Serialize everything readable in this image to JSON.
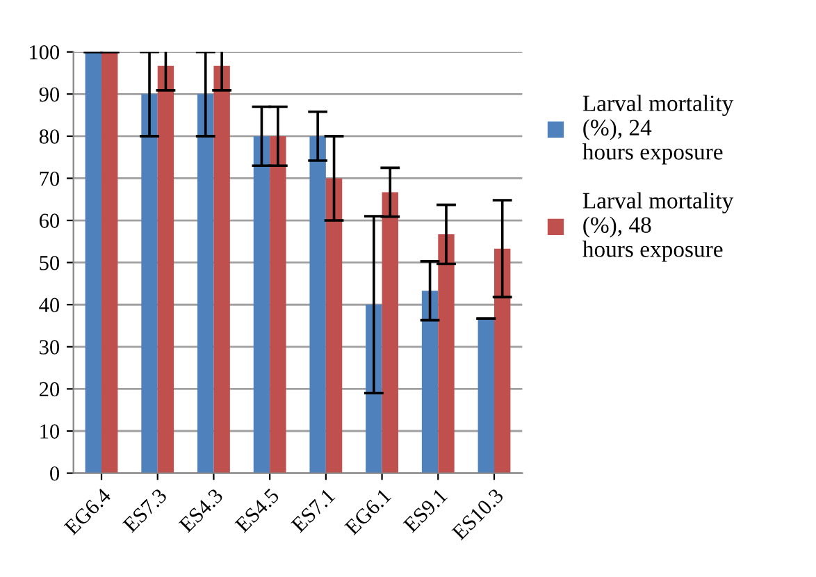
{
  "chart_data": {
    "type": "bar",
    "categories": [
      "EG6.4",
      "ES7.3",
      "ES4.3",
      "ES4.5",
      "ES7.1",
      "EG6.1",
      "ES9.1",
      "ES10.3"
    ],
    "series": [
      {
        "name": "Larval mortality (%), 24 hours exposure",
        "color": "#4f81bd",
        "values": [
          100,
          90,
          90,
          80,
          80,
          40,
          43.3,
          36.7
        ],
        "errors": [
          0,
          10,
          10,
          7,
          5.8,
          21,
          7,
          0
        ]
      },
      {
        "name": "Larval mortality (%), 48 hours exposure",
        "color": "#c0504d",
        "values": [
          100,
          96.7,
          96.7,
          80,
          70,
          66.7,
          56.7,
          53.3
        ],
        "errors": [
          0,
          5.8,
          5.8,
          7,
          10,
          5.8,
          7,
          11.5
        ]
      }
    ],
    "ylim": [
      0,
      100
    ],
    "yticks": [
      0,
      10,
      20,
      30,
      40,
      50,
      60,
      70,
      80,
      90,
      100
    ],
    "grid": "y",
    "legend": "right"
  }
}
